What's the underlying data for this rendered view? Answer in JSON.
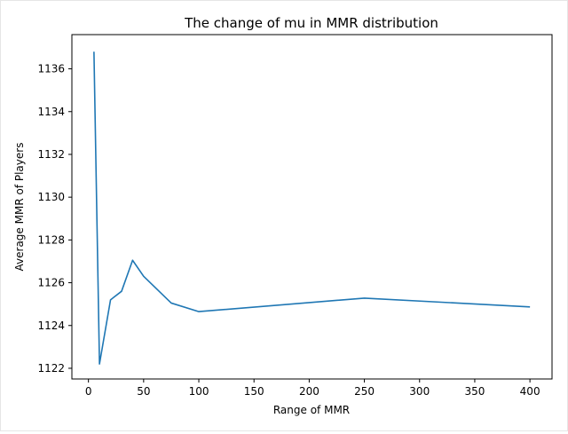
{
  "chart_data": {
    "type": "line",
    "title": "The change of mu in MMR distribution",
    "xlabel": "Range of MMR",
    "ylabel": "Average MMR of Players",
    "xlim": [
      -15,
      420
    ],
    "ylim": [
      1121.5,
      1137.6
    ],
    "xticks": [
      0,
      50,
      100,
      150,
      200,
      250,
      300,
      350,
      400
    ],
    "yticks": [
      1122,
      1124,
      1126,
      1128,
      1130,
      1132,
      1134,
      1136
    ],
    "grid": false,
    "line_color": "#1f77b4",
    "series": [
      {
        "x": [
          5,
          10,
          20,
          30,
          40,
          50,
          75,
          100,
          250,
          400
        ],
        "values": [
          1136.8,
          1122.2,
          1125.2,
          1125.6,
          1127.05,
          1126.3,
          1125.05,
          1124.65,
          1125.28,
          1124.87
        ]
      }
    ]
  }
}
